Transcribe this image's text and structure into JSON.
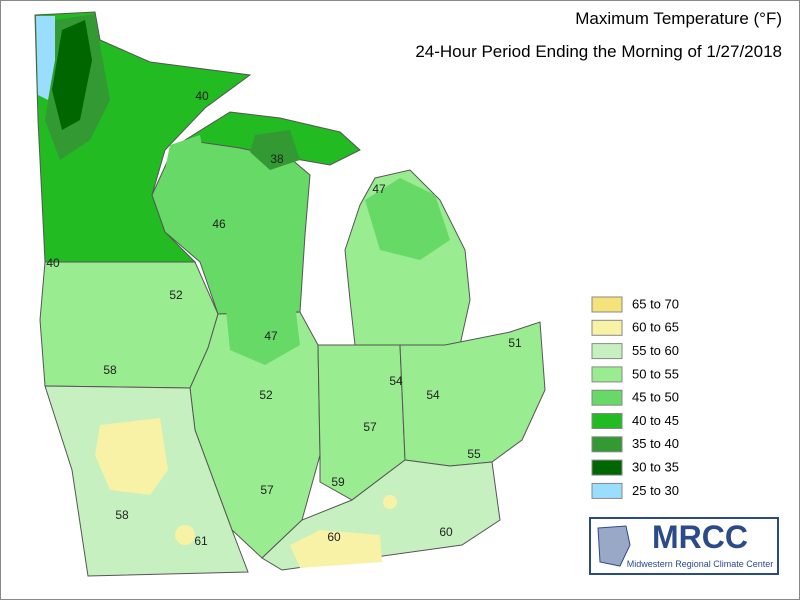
{
  "header": {
    "title": "Maximum Temperature (°F)",
    "subtitle": "24-Hour Period Ending the Morning of 1/27/2018"
  },
  "legend": [
    {
      "label": "65 to 70",
      "color": "#f5e27a"
    },
    {
      "label": "60 to 65",
      "color": "#f7f2a6"
    },
    {
      "label": "55 to 60",
      "color": "#c6f0c0"
    },
    {
      "label": "50 to 55",
      "color": "#99ec90"
    },
    {
      "label": "45 to 50",
      "color": "#66d966"
    },
    {
      "label": "40 to 45",
      "color": "#22bb22"
    },
    {
      "label": "35 to 40",
      "color": "#339933"
    },
    {
      "label": "30 to 35",
      "color": "#006600"
    },
    {
      "label": "25 to 30",
      "color": "#99ddff"
    }
  ],
  "station_labels": [
    40,
    38,
    47,
    46,
    40,
    52,
    47,
    51,
    58,
    54,
    54,
    52,
    57,
    55,
    59,
    57,
    58,
    60,
    61,
    60
  ],
  "logo": {
    "name": "MRCC",
    "subtitle": "Midwestern Regional Climate Center"
  }
}
